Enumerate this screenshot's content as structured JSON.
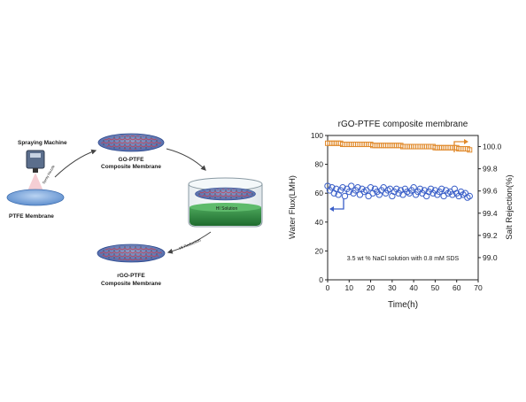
{
  "schematic": {
    "spraying_machine_label": "Spraying Machine",
    "nozzle_label": "Spray Nozzle",
    "ptfe_label": "PTFE Membrane",
    "go_label_line1": "GO-PTFE",
    "go_label_line2": "Composite Membrane",
    "hi_solution_label": "HI Solution",
    "reduction_arrow_label": "HI Reduction",
    "rgo_label_line1": "rGO-PTFE",
    "rgo_label_line2": "Composite Membrane"
  },
  "chart_data": {
    "type": "scatter",
    "title": "rGO-PTFE composite membrane",
    "xlabel": "Time(h)",
    "ylabel_left": "Water Flux(LMH)",
    "ylabel_right": "Salt Rejection(%)",
    "annotation": "3.5 wt % NaCl solution with 0.8 mM SDS",
    "xlim": [
      0,
      70
    ],
    "ylim_left": [
      0,
      100
    ],
    "ylim_right": [
      98.8,
      100.1
    ],
    "x_ticks": [
      "0",
      "10",
      "20",
      "30",
      "40",
      "50",
      "60",
      "70"
    ],
    "y_left_ticks": [
      "0",
      "20",
      "40",
      "60",
      "80",
      "100"
    ],
    "y_right_ticks": [
      "99.0",
      "99.2",
      "99.4",
      "99.6",
      "99.8",
      "100.0"
    ],
    "grid": false,
    "colors": {
      "flux": "#3a5fc8",
      "rejection": "#e08a2c"
    },
    "series": [
      {
        "axis": "left",
        "marker": "circle",
        "x": [
          0,
          1,
          2,
          3,
          4,
          5,
          6,
          7,
          8,
          9,
          10,
          11,
          12,
          13,
          14,
          15,
          16,
          17,
          18,
          19,
          20,
          21,
          22,
          23,
          24,
          25,
          26,
          27,
          28,
          29,
          30,
          31,
          32,
          33,
          34,
          35,
          36,
          37,
          38,
          39,
          40,
          41,
          42,
          43,
          44,
          45,
          46,
          47,
          48,
          49,
          50,
          51,
          52,
          53,
          54,
          55,
          56,
          57,
          58,
          59,
          60,
          61,
          62,
          63,
          64,
          65,
          66
        ],
        "values": [
          65,
          62,
          64,
          60,
          63,
          59,
          62,
          64,
          58,
          63,
          61,
          65,
          60,
          62,
          64,
          59,
          63,
          61,
          62,
          58,
          64,
          60,
          63,
          61,
          59,
          62,
          64,
          60,
          62,
          63,
          58,
          61,
          63,
          60,
          62,
          59,
          63,
          61,
          60,
          62,
          64,
          59,
          61,
          63,
          60,
          62,
          58,
          61,
          63,
          60,
          62,
          59,
          61,
          63,
          58,
          62,
          60,
          61,
          59,
          63,
          60,
          58,
          61,
          59,
          60,
          57,
          58
        ]
      },
      {
        "axis": "right",
        "marker": "square",
        "x": [
          0,
          1,
          2,
          3,
          4,
          5,
          6,
          7,
          8,
          9,
          10,
          11,
          12,
          13,
          14,
          15,
          16,
          17,
          18,
          19,
          20,
          21,
          22,
          23,
          24,
          25,
          26,
          27,
          28,
          29,
          30,
          31,
          32,
          33,
          34,
          35,
          36,
          37,
          38,
          39,
          40,
          41,
          42,
          43,
          44,
          45,
          46,
          47,
          48,
          49,
          50,
          51,
          52,
          53,
          54,
          55,
          56,
          57,
          58,
          59,
          60,
          61,
          62,
          63,
          64,
          65,
          66
        ],
        "values": [
          100.03,
          100.03,
          100.03,
          100.03,
          100.03,
          100.03,
          100.03,
          100.02,
          100.02,
          100.02,
          100.02,
          100.02,
          100.02,
          100.02,
          100.02,
          100.02,
          100.02,
          100.02,
          100.02,
          100.02,
          100.02,
          100.01,
          100.01,
          100.01,
          100.01,
          100.01,
          100.01,
          100.01,
          100.01,
          100.01,
          100.01,
          100.01,
          100.01,
          100.01,
          100.01,
          100.0,
          100.0,
          100.0,
          100.0,
          100.0,
          100.0,
          100.0,
          100.0,
          100.0,
          100.0,
          100.0,
          100.0,
          100.0,
          100.0,
          100.0,
          99.99,
          99.99,
          99.99,
          99.99,
          99.99,
          99.99,
          99.99,
          99.99,
          99.99,
          99.99,
          99.99,
          99.98,
          99.98,
          99.98,
          99.98,
          99.98,
          99.97
        ]
      }
    ]
  }
}
